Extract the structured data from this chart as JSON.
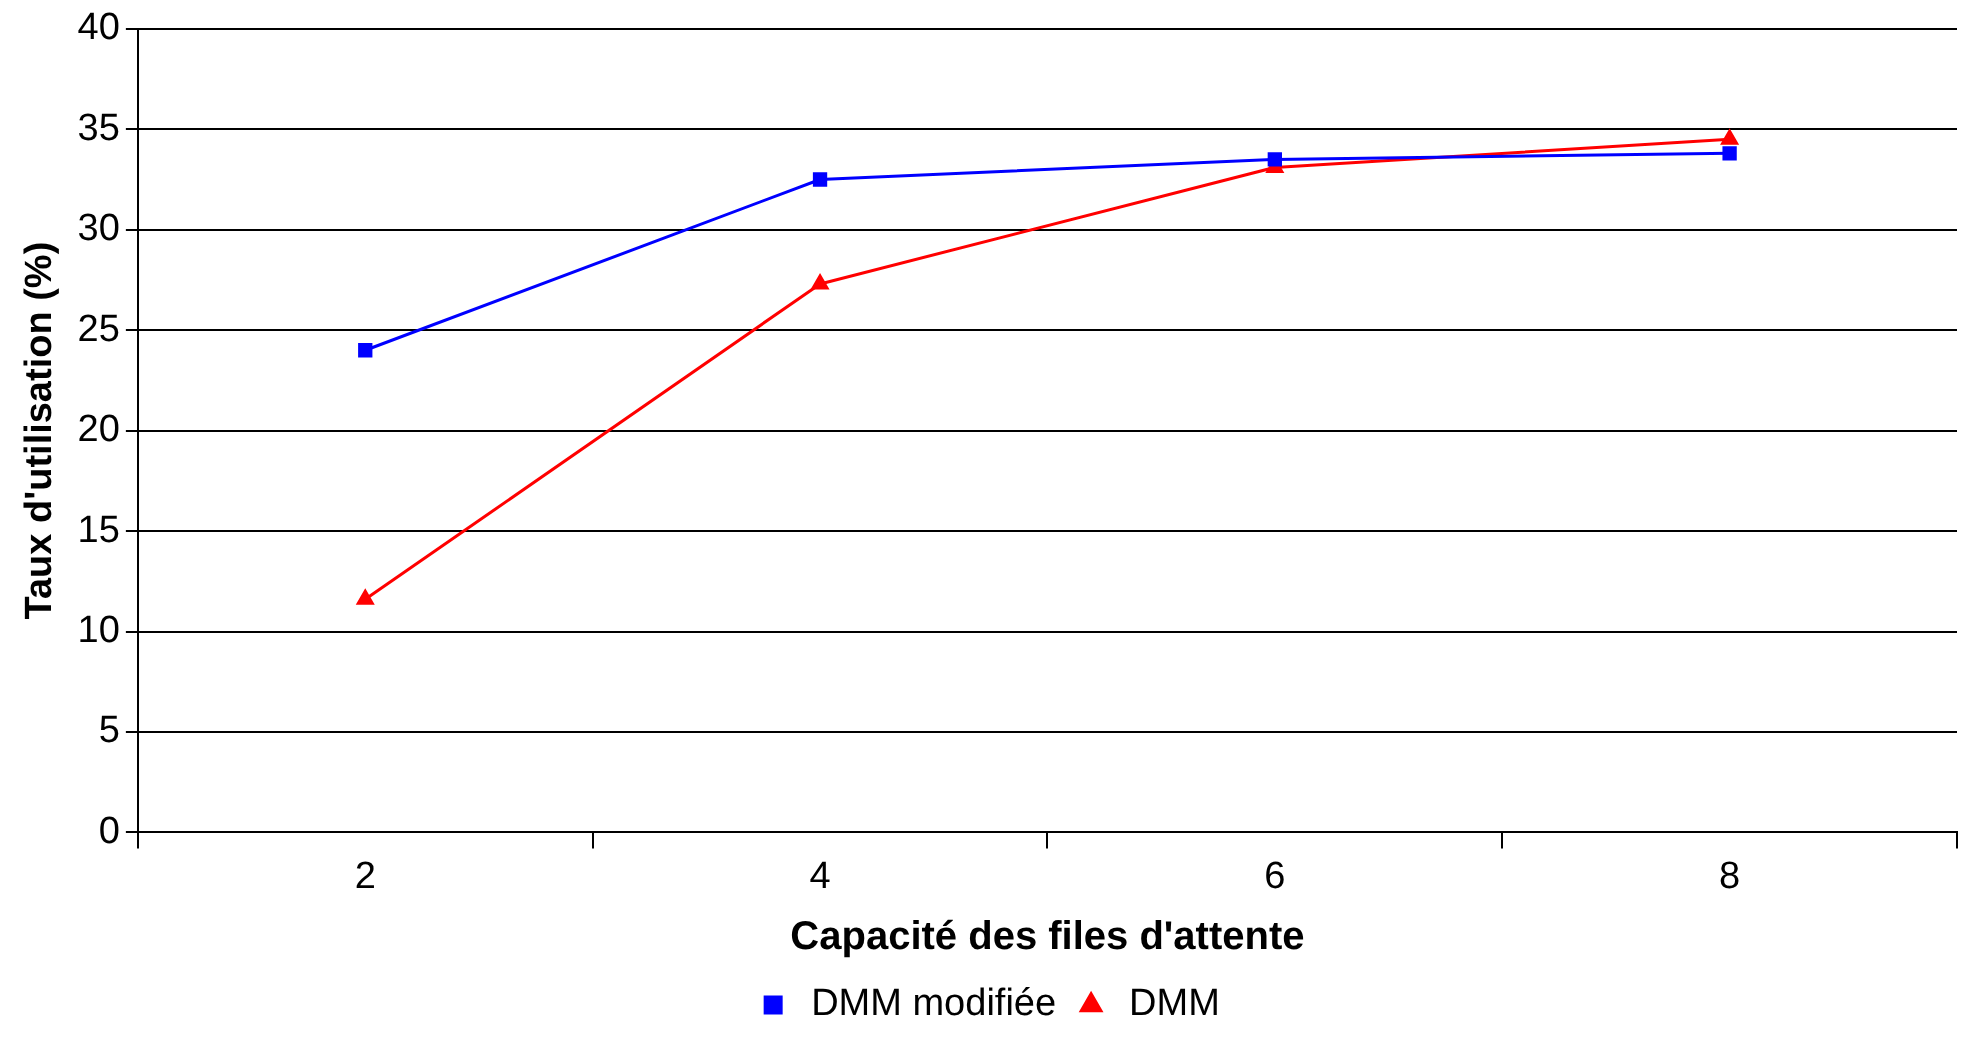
{
  "chart_data": {
    "type": "line",
    "xlabel": "Capacité des files d'attente",
    "ylabel": "Taux d'utilisation (%)",
    "categories": [
      "2",
      "4",
      "6",
      "8"
    ],
    "series": [
      {
        "name": "DMM modifiée",
        "color": "#0000ff",
        "marker": "square",
        "values": [
          24.0,
          32.5,
          33.5,
          33.8
        ]
      },
      {
        "name": "DMM",
        "color": "#ff0000",
        "marker": "triangle",
        "values": [
          11.6,
          27.3,
          33.1,
          34.5
        ]
      }
    ],
    "ylim": [
      0,
      40
    ],
    "yticks": [
      0,
      5,
      10,
      15,
      20,
      25,
      30,
      35,
      40
    ],
    "grid": "y",
    "legend": "bottom",
    "line_style": "solid"
  }
}
